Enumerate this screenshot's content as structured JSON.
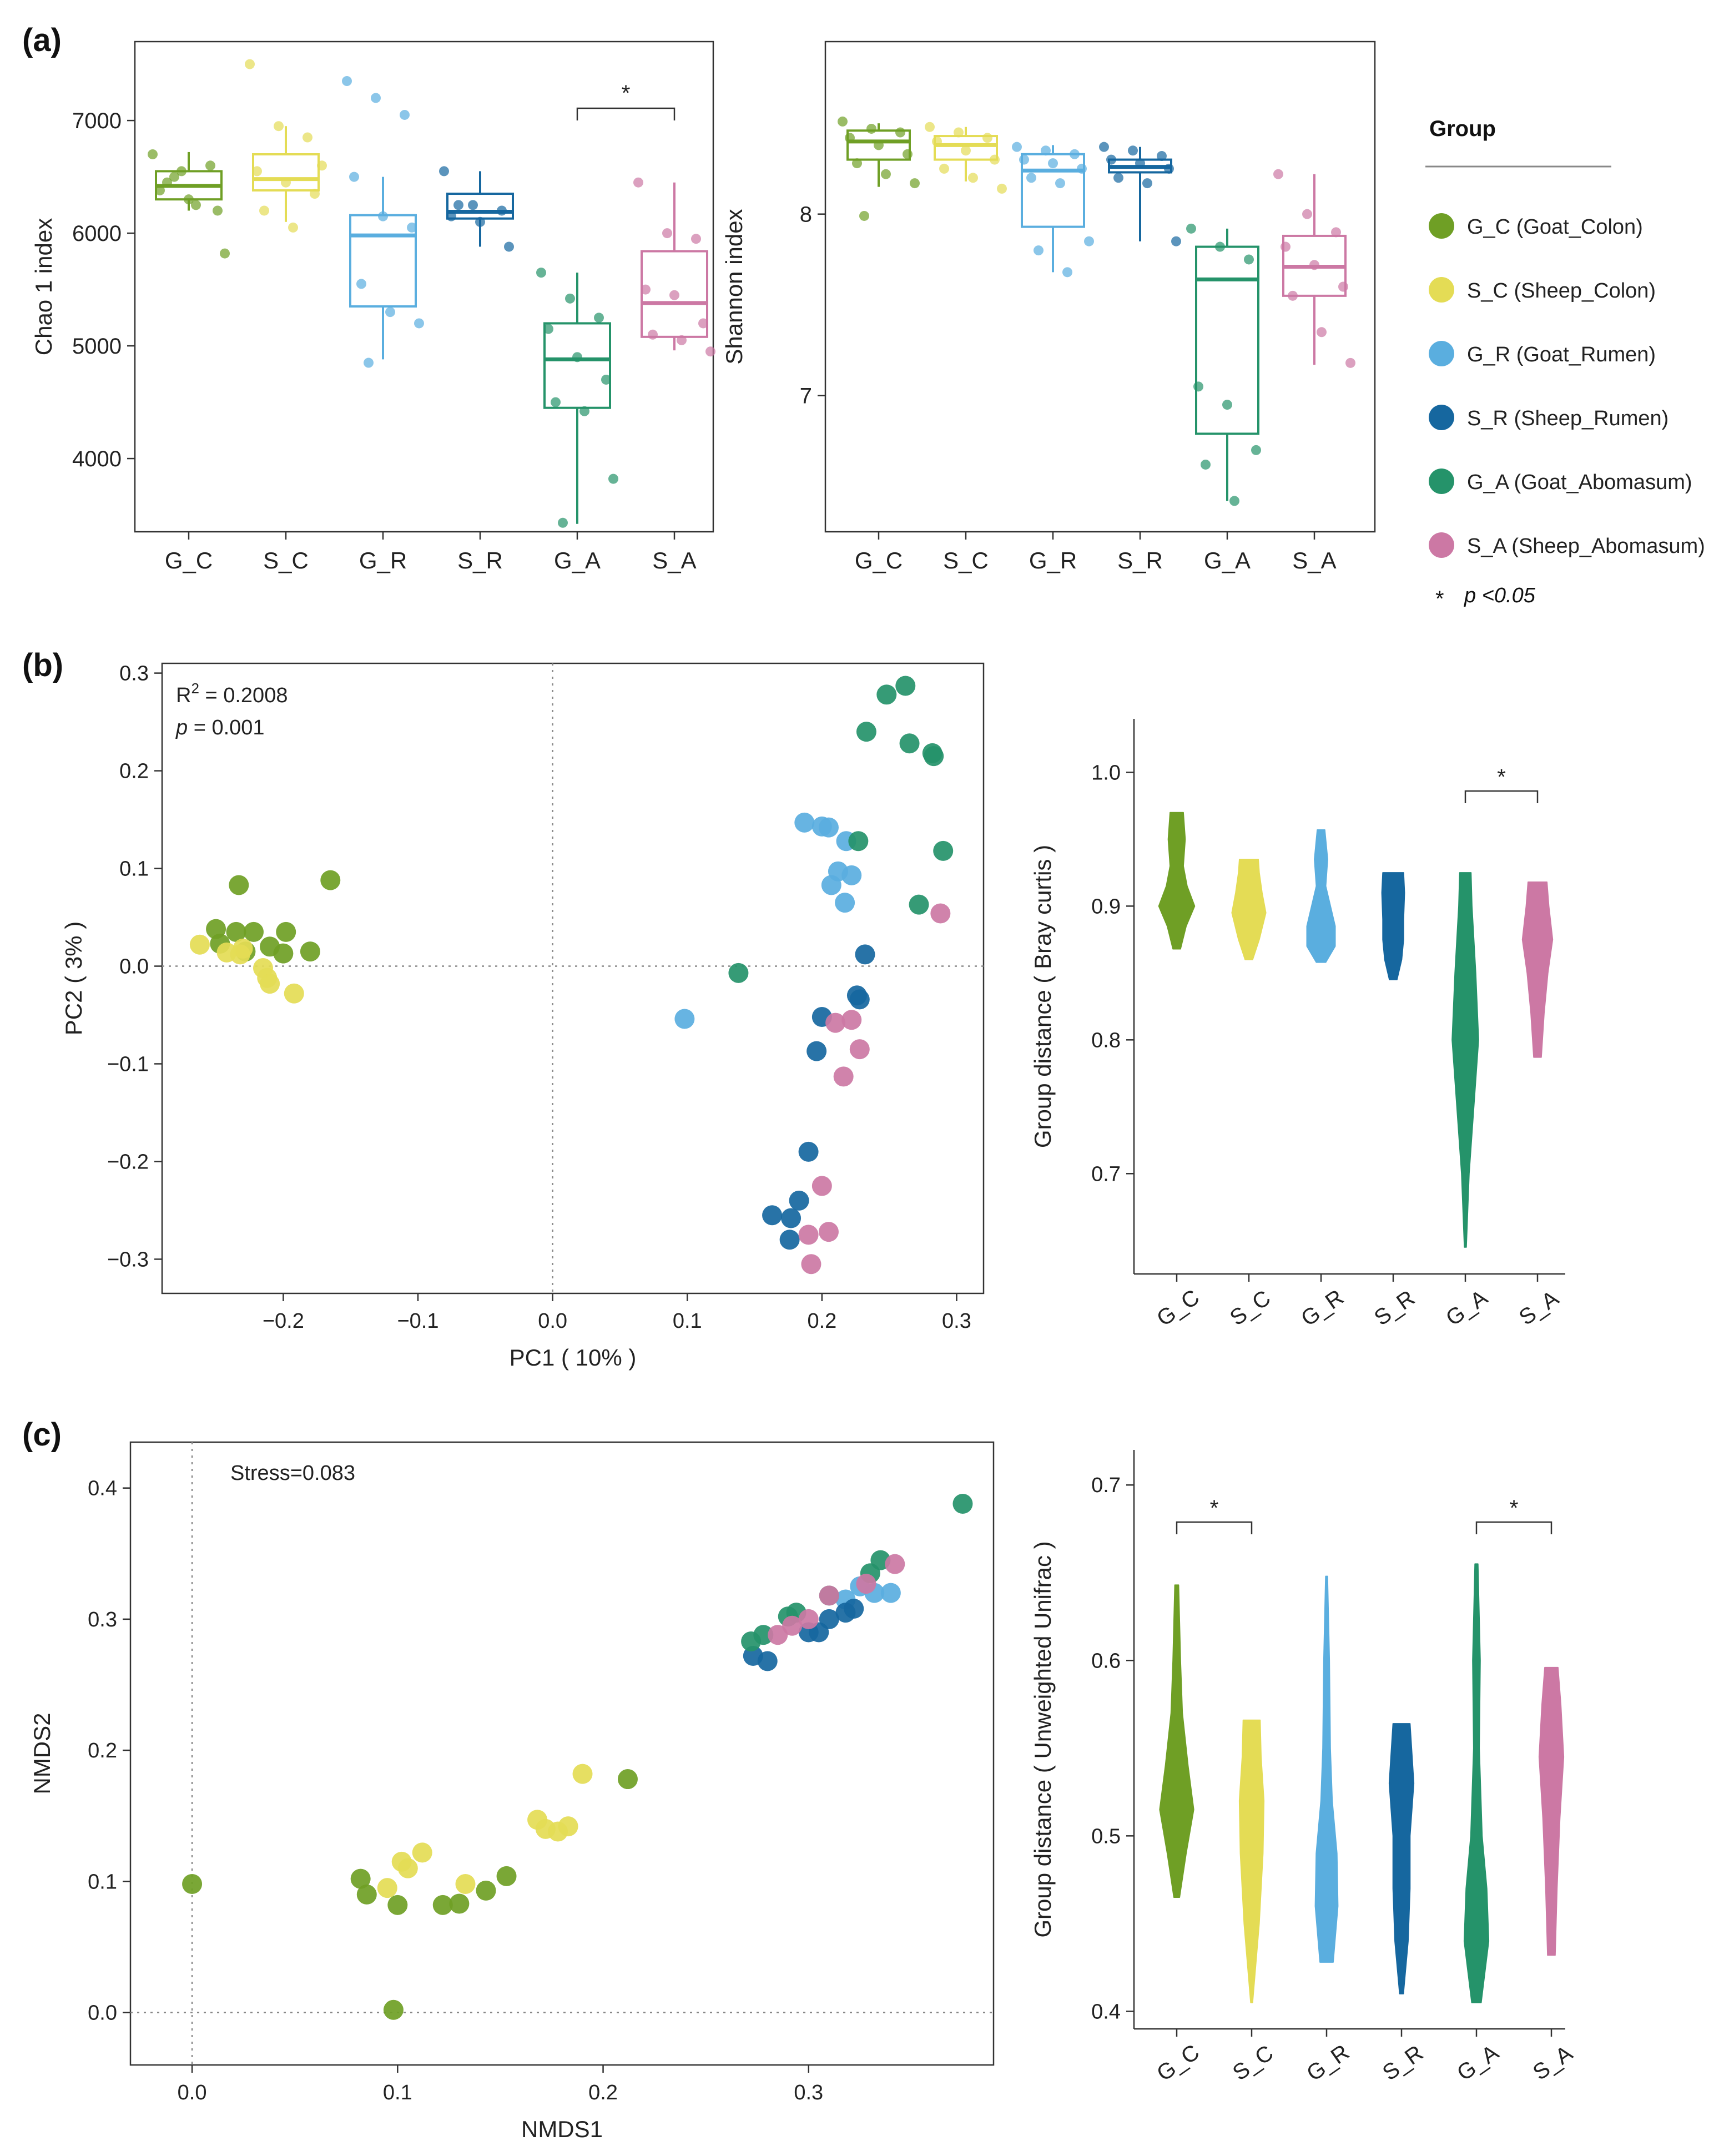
{
  "colors": {
    "G_C": "#6f9f25",
    "S_C": "#e4dc55",
    "G_R": "#5aaedf",
    "S_R": "#16679f",
    "G_A": "#25936a",
    "S_A": "#cc78a4"
  },
  "legend": {
    "title": "Group",
    "items": [
      {
        "key": "G_C",
        "label": "G_C (Goat_Colon)"
      },
      {
        "key": "S_C",
        "label": "S_C (Sheep_Colon)"
      },
      {
        "key": "G_R",
        "label": "G_R (Goat_Rumen)"
      },
      {
        "key": "S_R",
        "label": "S_R (Sheep_Rumen)"
      },
      {
        "key": "G_A",
        "label": "G_A (Goat_Abomasum)"
      },
      {
        "key": "S_A",
        "label": "S_A (Sheep_Abomasum)"
      }
    ],
    "sig_symbol": "*",
    "sig_text": "p <0.05"
  },
  "panel_labels": [
    "(a)",
    "(b)",
    "(c)"
  ],
  "chart_data": [
    {
      "id": "chao1",
      "type": "box",
      "ylabel": "Chao 1 index",
      "ylim": [
        3350,
        7700
      ],
      "yticks": [
        4000,
        5000,
        6000,
        7000
      ],
      "categories": [
        "G_C",
        "S_C",
        "G_R",
        "S_R",
        "G_A",
        "S_A"
      ],
      "boxes": [
        {
          "min": 6200,
          "q1": 6300,
          "median": 6420,
          "q3": 6550,
          "max": 6720
        },
        {
          "min": 6100,
          "q1": 6380,
          "median": 6480,
          "q3": 6700,
          "max": 6950
        },
        {
          "min": 4880,
          "q1": 5350,
          "median": 5980,
          "q3": 6160,
          "max": 6500
        },
        {
          "min": 5880,
          "q1": 6130,
          "median": 6190,
          "q3": 6350,
          "max": 6550
        },
        {
          "min": 3420,
          "q1": 4450,
          "median": 4880,
          "q3": 5200,
          "max": 5650
        },
        {
          "min": 4960,
          "q1": 5080,
          "median": 5380,
          "q3": 5840,
          "max": 6450
        }
      ],
      "points": [
        [
          6700,
          6550,
          6600,
          6380,
          6300,
          6200,
          6450,
          6250,
          5820,
          6500
        ],
        [
          7500,
          6950,
          6850,
          6550,
          6450,
          6350,
          6200,
          6050,
          6600
        ],
        [
          7350,
          7200,
          7050,
          6500,
          6150,
          6050,
          5550,
          5300,
          5200,
          4850
        ],
        [
          6550,
          6250,
          6200,
          6150,
          6100,
          5880,
          6250
        ],
        [
          5650,
          5420,
          5250,
          5150,
          4900,
          4700,
          4500,
          4420,
          3820,
          3430
        ],
        [
          6450,
          6000,
          5950,
          5500,
          5450,
          5200,
          5100,
          5050,
          4950
        ]
      ],
      "significance": [
        {
          "from": 4,
          "to": 5,
          "label": "*"
        }
      ]
    },
    {
      "id": "shannon",
      "type": "box",
      "ylabel": "Shannon index",
      "ylim": [
        6.25,
        8.95
      ],
      "yticks": [
        7,
        8
      ],
      "categories": [
        "G_C",
        "S_C",
        "G_R",
        "S_R",
        "G_A",
        "S_A"
      ],
      "boxes": [
        {
          "min": 8.15,
          "q1": 8.3,
          "median": 8.4,
          "q3": 8.46,
          "max": 8.5
        },
        {
          "min": 8.18,
          "q1": 8.3,
          "median": 8.38,
          "q3": 8.43,
          "max": 8.48
        },
        {
          "min": 7.68,
          "q1": 7.93,
          "median": 8.24,
          "q3": 8.33,
          "max": 8.38
        },
        {
          "min": 7.85,
          "q1": 8.23,
          "median": 8.26,
          "q3": 8.3,
          "max": 8.37
        },
        {
          "min": 6.42,
          "q1": 6.79,
          "median": 7.64,
          "q3": 7.82,
          "max": 7.92
        },
        {
          "min": 7.17,
          "q1": 7.55,
          "median": 7.71,
          "q3": 7.88,
          "max": 8.22
        }
      ],
      "points": [
        [
          8.51,
          8.47,
          8.45,
          8.42,
          8.38,
          8.33,
          8.28,
          8.22,
          8.17,
          7.99
        ],
        [
          8.48,
          8.45,
          8.42,
          8.4,
          8.35,
          8.3,
          8.25,
          8.2,
          8.14
        ],
        [
          8.37,
          8.35,
          8.33,
          8.3,
          8.28,
          8.25,
          8.2,
          8.17,
          7.85,
          7.8,
          7.68
        ],
        [
          8.37,
          8.35,
          8.32,
          8.3,
          8.28,
          8.25,
          8.2,
          8.17,
          7.85
        ],
        [
          7.92,
          7.82,
          7.75,
          7.05,
          6.95,
          6.7,
          6.62,
          6.42
        ],
        [
          8.22,
          8.0,
          7.9,
          7.82,
          7.72,
          7.6,
          7.55,
          7.35,
          7.18
        ]
      ],
      "significance": []
    },
    {
      "id": "pcoa",
      "type": "scatter",
      "xlabel": "PC1 ( 10% )",
      "ylabel": "PC2 ( 3% )",
      "xlim": [
        -0.29,
        0.32
      ],
      "ylim": [
        -0.335,
        0.31
      ],
      "xticks": [
        -0.2,
        -0.1,
        0.0,
        0.1,
        0.2,
        0.3
      ],
      "yticks": [
        -0.3,
        -0.2,
        -0.1,
        0.0,
        0.1,
        0.2,
        0.3
      ],
      "annotations": {
        "r2_prefix": "R",
        "r2_sup": "2",
        "r2_value": "= 0.2008",
        "p_label": "p",
        "p_value": "= 0.001"
      },
      "series": [
        {
          "name": "G_C",
          "x": [
            -0.233,
            -0.165,
            -0.25,
            -0.235,
            -0.222,
            -0.198,
            -0.247,
            -0.21,
            -0.228,
            -0.2,
            -0.18
          ],
          "y": [
            0.083,
            0.088,
            0.038,
            0.035,
            0.035,
            0.035,
            0.023,
            0.02,
            0.015,
            0.013,
            0.015
          ]
        },
        {
          "name": "S_C",
          "x": [
            -0.262,
            -0.242,
            -0.232,
            -0.23,
            -0.215,
            -0.212,
            -0.21,
            -0.192
          ],
          "y": [
            0.022,
            0.014,
            0.012,
            0.018,
            -0.002,
            -0.012,
            -0.018,
            -0.028
          ]
        },
        {
          "name": "G_R",
          "x": [
            0.187,
            0.2,
            0.205,
            0.218,
            0.212,
            0.222,
            0.207,
            0.217,
            0.098
          ],
          "y": [
            0.147,
            0.143,
            0.142,
            0.128,
            0.097,
            0.093,
            0.083,
            0.065,
            -0.054
          ]
        },
        {
          "name": "S_R",
          "x": [
            0.232,
            0.228,
            0.2,
            0.226,
            0.196,
            0.19,
            0.183,
            0.163,
            0.177,
            0.176
          ],
          "y": [
            0.012,
            -0.034,
            -0.052,
            -0.03,
            -0.087,
            -0.19,
            -0.24,
            -0.255,
            -0.258,
            -0.28
          ]
        },
        {
          "name": "G_A",
          "x": [
            0.262,
            0.248,
            0.233,
            0.265,
            0.282,
            0.283,
            0.29,
            0.227,
            0.272,
            0.138
          ],
          "y": [
            0.287,
            0.278,
            0.24,
            0.228,
            0.218,
            0.215,
            0.118,
            0.128,
            0.063,
            -0.007
          ]
        },
        {
          "name": "S_A",
          "x": [
            0.288,
            0.21,
            0.222,
            0.228,
            0.216,
            0.2,
            0.205,
            0.19,
            0.192
          ],
          "y": [
            0.054,
            -0.058,
            -0.055,
            -0.085,
            -0.113,
            -0.225,
            -0.272,
            -0.275,
            -0.305
          ]
        }
      ]
    },
    {
      "id": "violin_bray",
      "type": "violin",
      "ylabel": "Group distance ( Bray curtis )",
      "ylim": [
        0.625,
        1.04
      ],
      "yticks": [
        0.7,
        0.8,
        0.9,
        1.0
      ],
      "categories": [
        "G_C",
        "S_C",
        "G_R",
        "S_R",
        "G_A",
        "S_A"
      ],
      "profiles": [
        [
          [
            0.868,
            0.2
          ],
          [
            0.885,
            0.5
          ],
          [
            0.9,
            0.95
          ],
          [
            0.915,
            0.55
          ],
          [
            0.93,
            0.35
          ],
          [
            0.95,
            0.45
          ],
          [
            0.97,
            0.35
          ]
        ],
        [
          [
            0.86,
            0.2
          ],
          [
            0.875,
            0.55
          ],
          [
            0.895,
            0.9
          ],
          [
            0.91,
            0.7
          ],
          [
            0.925,
            0.55
          ],
          [
            0.935,
            0.5
          ]
        ],
        [
          [
            0.858,
            0.25
          ],
          [
            0.87,
            0.75
          ],
          [
            0.885,
            0.75
          ],
          [
            0.9,
            0.5
          ],
          [
            0.915,
            0.25
          ],
          [
            0.935,
            0.35
          ],
          [
            0.957,
            0.2
          ]
        ],
        [
          [
            0.845,
            0.2
          ],
          [
            0.86,
            0.45
          ],
          [
            0.875,
            0.55
          ],
          [
            0.89,
            0.55
          ],
          [
            0.91,
            0.6
          ],
          [
            0.925,
            0.55
          ]
        ],
        [
          [
            0.645,
            0.05
          ],
          [
            0.7,
            0.2
          ],
          [
            0.75,
            0.45
          ],
          [
            0.8,
            0.7
          ],
          [
            0.85,
            0.55
          ],
          [
            0.9,
            0.35
          ],
          [
            0.925,
            0.3
          ]
        ],
        [
          [
            0.787,
            0.2
          ],
          [
            0.82,
            0.35
          ],
          [
            0.85,
            0.55
          ],
          [
            0.875,
            0.8
          ],
          [
            0.9,
            0.6
          ],
          [
            0.918,
            0.5
          ]
        ]
      ],
      "significance": [
        {
          "from": 4,
          "to": 5,
          "label": "*"
        }
      ]
    },
    {
      "id": "nmds",
      "type": "scatter",
      "xlabel": "NMDS1",
      "ylabel": "NMDS2",
      "xlim": [
        -0.03,
        0.39
      ],
      "ylim": [
        -0.04,
        0.435
      ],
      "xticks": [
        0.0,
        0.1,
        0.2,
        0.3
      ],
      "yticks": [
        0.0,
        0.1,
        0.2,
        0.3,
        0.4
      ],
      "annotations": {
        "stress": "Stress=0.083"
      },
      "series": [
        {
          "name": "G_C",
          "x": [
            0.0,
            0.098,
            0.082,
            0.085,
            0.1,
            0.122,
            0.13,
            0.143,
            0.153,
            0.212
          ],
          "y": [
            0.098,
            0.002,
            0.102,
            0.09,
            0.082,
            0.082,
            0.083,
            0.093,
            0.104,
            0.178
          ]
        },
        {
          "name": "S_C",
          "x": [
            0.095,
            0.102,
            0.105,
            0.112,
            0.133,
            0.168,
            0.172,
            0.178,
            0.183,
            0.19
          ],
          "y": [
            0.095,
            0.115,
            0.11,
            0.122,
            0.098,
            0.147,
            0.14,
            0.138,
            0.142,
            0.182
          ]
        },
        {
          "name": "G_R",
          "x": [
            0.318,
            0.325,
            0.332,
            0.34
          ],
          "y": [
            0.315,
            0.325,
            0.32,
            0.32
          ]
        },
        {
          "name": "S_R",
          "x": [
            0.273,
            0.28,
            0.3,
            0.305,
            0.31,
            0.318,
            0.322
          ],
          "y": [
            0.272,
            0.268,
            0.29,
            0.29,
            0.3,
            0.305,
            0.308
          ]
        },
        {
          "name": "G_A",
          "x": [
            0.272,
            0.278,
            0.29,
            0.294,
            0.31,
            0.33,
            0.335,
            0.375
          ],
          "y": [
            0.283,
            0.288,
            0.302,
            0.305,
            0.318,
            0.335,
            0.345,
            0.388
          ]
        },
        {
          "name": "S_A",
          "x": [
            0.285,
            0.292,
            0.3,
            0.31,
            0.328,
            0.342
          ],
          "y": [
            0.288,
            0.295,
            0.3,
            0.318,
            0.327,
            0.342
          ]
        }
      ]
    },
    {
      "id": "violin_unifrac",
      "type": "violin",
      "ylabel": "Group distance ( Unweighted Unifrac )",
      "ylim": [
        0.39,
        0.72
      ],
      "yticks": [
        0.4,
        0.5,
        0.6,
        0.7
      ],
      "categories": [
        "G_C",
        "S_C",
        "G_R",
        "S_R",
        "G_A",
        "S_A"
      ],
      "profiles": [
        [
          [
            0.465,
            0.15
          ],
          [
            0.49,
            0.5
          ],
          [
            0.515,
            0.9
          ],
          [
            0.54,
            0.6
          ],
          [
            0.57,
            0.3
          ],
          [
            0.6,
            0.2
          ],
          [
            0.643,
            0.1
          ]
        ],
        [
          [
            0.405,
            0.05
          ],
          [
            0.45,
            0.4
          ],
          [
            0.49,
            0.6
          ],
          [
            0.52,
            0.65
          ],
          [
            0.545,
            0.5
          ],
          [
            0.566,
            0.45
          ]
        ],
        [
          [
            0.428,
            0.35
          ],
          [
            0.46,
            0.6
          ],
          [
            0.49,
            0.55
          ],
          [
            0.52,
            0.3
          ],
          [
            0.55,
            0.2
          ],
          [
            0.6,
            0.15
          ],
          [
            0.648,
            0.05
          ]
        ],
        [
          [
            0.41,
            0.1
          ],
          [
            0.44,
            0.35
          ],
          [
            0.47,
            0.45
          ],
          [
            0.5,
            0.45
          ],
          [
            0.53,
            0.65
          ],
          [
            0.564,
            0.45
          ]
        ],
        [
          [
            0.405,
            0.25
          ],
          [
            0.44,
            0.65
          ],
          [
            0.47,
            0.55
          ],
          [
            0.5,
            0.3
          ],
          [
            0.55,
            0.15
          ],
          [
            0.6,
            0.2
          ],
          [
            0.655,
            0.08
          ]
        ],
        [
          [
            0.432,
            0.2
          ],
          [
            0.47,
            0.3
          ],
          [
            0.51,
            0.45
          ],
          [
            0.545,
            0.65
          ],
          [
            0.575,
            0.5
          ],
          [
            0.596,
            0.35
          ]
        ]
      ],
      "significance": [
        {
          "from": 0,
          "to": 1,
          "label": "*"
        },
        {
          "from": 4,
          "to": 5,
          "label": "*"
        }
      ]
    }
  ]
}
